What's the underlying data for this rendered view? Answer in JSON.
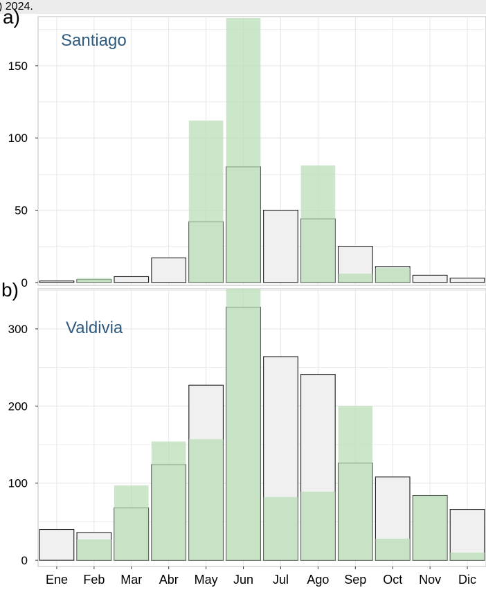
{
  "caption_fragment": ") 2024.",
  "colors": {
    "obs_fill": "#f0f0f0",
    "obs_stroke": "#1a1a1a",
    "green_fill": "#b9dcb5",
    "green_opacity": 0.72,
    "grid": "#e6e6e6",
    "city_label": "#2e5a80"
  },
  "chart_data": [
    {
      "type": "bar",
      "panel_label": "a)",
      "title": "Santiago",
      "categories": [
        "Ene",
        "Feb",
        "Mar",
        "Abr",
        "May",
        "Jun",
        "Jul",
        "Ago",
        "Sep",
        "Oct",
        "Nov",
        "Dic"
      ],
      "series": [
        {
          "values": [
            1,
            2,
            4,
            17,
            42,
            80,
            50,
            44,
            25,
            11,
            5,
            3
          ]
        },
        {
          "values": [
            0,
            3,
            0,
            0,
            112,
            183,
            0,
            81,
            6,
            10,
            0,
            0
          ]
        }
      ],
      "yticks": [
        0,
        50,
        100,
        150
      ],
      "ylim": [
        -2,
        184
      ],
      "xlabel": "",
      "ylabel": "",
      "grid": true
    },
    {
      "type": "bar",
      "panel_label": "b)",
      "title": "Valdivia",
      "categories": [
        "Ene",
        "Feb",
        "Mar",
        "Abr",
        "May",
        "Jun",
        "Jul",
        "Ago",
        "Sep",
        "Oct",
        "Nov",
        "Dic"
      ],
      "series": [
        {
          "values": [
            40,
            36,
            68,
            124,
            227,
            328,
            264,
            241,
            126,
            108,
            84,
            66
          ]
        },
        {
          "values": [
            0,
            27,
            97,
            154,
            157,
            352,
            82,
            89,
            200,
            28,
            84,
            10
          ]
        }
      ],
      "yticks": [
        0,
        100,
        200,
        300
      ],
      "ylim": [
        -8,
        352
      ],
      "xlabel": "",
      "ylabel": "",
      "grid": true
    }
  ]
}
